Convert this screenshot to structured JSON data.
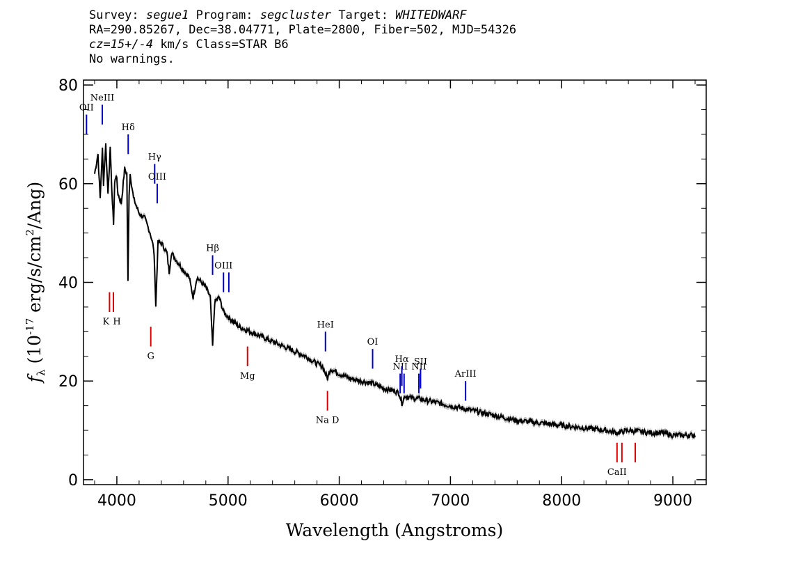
{
  "header": {
    "survey_label": "Survey:",
    "survey": "segue1",
    "program_label": "Program:",
    "program": "segcluster",
    "target_label": "Target:",
    "target": "WHITEDWARF",
    "line2": "RA=290.85267, Dec=38.04771, Plate=2800, Fiber=502, MJD=54326",
    "cz": "cz=15+/-4",
    "cz_rest": "km/s Class=STAR B6",
    "line4": "No warnings."
  },
  "chart_data": {
    "type": "line",
    "xlabel": "Wavelength (Angstroms)",
    "ylabel": "fλ (10⁻¹⁷ erg/s/cm²/Ang)",
    "xlim": [
      3700,
      9300
    ],
    "ylim": [
      -1,
      81
    ],
    "xticks": [
      "4000",
      "5000",
      "6000",
      "7000",
      "8000",
      "9000"
    ],
    "yticks": [
      "0",
      "20",
      "40",
      "60",
      "80"
    ],
    "grid": false,
    "colors": {
      "spectrum": "#000000",
      "error_band": "#bbbbbb",
      "emission": "#0000cc",
      "absorption": "#dd0000"
    },
    "series": [
      {
        "x": [
          3800,
          3830,
          3850,
          3870,
          3880,
          3900,
          3920,
          3940,
          3960,
          3970,
          3980,
          3995,
          4010,
          4040,
          4070,
          4090,
          4100,
          4110,
          4120,
          4150,
          4200,
          4250,
          4300,
          4330,
          4340,
          4350,
          4370,
          4400,
          4450,
          4471,
          4490,
          4550,
          4650,
          4686,
          4720,
          4800,
          4840,
          4861,
          4880,
          4920,
          4960,
          5000,
          5100,
          5200,
          5300,
          5400,
          5500,
          5600,
          5700,
          5800,
          5850,
          5876,
          5895,
          5920,
          6000,
          6100,
          6200,
          6300,
          6400,
          6500,
          6540,
          6563,
          6590,
          6650,
          6700,
          6800,
          6900,
          7000,
          7200,
          7400,
          7600,
          7800,
          8000,
          8200,
          8400,
          8500,
          8600,
          8800,
          8900,
          9000,
          9100,
          9200
        ],
        "y": [
          62,
          66,
          57,
          67,
          60,
          68,
          58,
          67,
          56,
          52,
          60,
          62,
          58,
          56,
          63,
          62,
          40,
          58,
          62,
          57,
          54,
          53,
          50,
          47,
          43,
          35,
          48,
          48,
          46,
          42,
          46,
          44,
          41,
          37,
          41,
          39,
          37,
          27,
          36,
          37,
          34,
          33,
          31,
          30,
          29,
          28,
          27,
          26,
          25,
          23.5,
          23,
          21.5,
          20.5,
          22.5,
          21.5,
          20.5,
          20,
          19.5,
          18.5,
          18,
          17.5,
          15.5,
          17,
          16.5,
          16.5,
          16,
          15.5,
          15,
          14,
          13,
          12,
          11.5,
          11,
          10.5,
          10,
          9.5,
          10,
          9.5,
          9.5,
          9,
          9,
          9
        ]
      }
    ],
    "emission_lines": [
      {
        "label": "OII",
        "x": 3727,
        "y": 74,
        "len": 4
      },
      {
        "label": "NeIII",
        "x": 3869,
        "y": 76,
        "len": 4
      },
      {
        "label": "Hδ",
        "x": 4102,
        "y": 70,
        "len": 4
      },
      {
        "label": "Hγ",
        "x": 4340,
        "y": 64,
        "len": 4
      },
      {
        "label": "OIII",
        "x": 4363,
        "y": 60,
        "len": 4
      },
      {
        "label": "Hβ",
        "x": 4861,
        "y": 45.5,
        "len": 4
      },
      {
        "label": "OIII",
        "x": 4959,
        "y": 42,
        "len": 4
      },
      {
        "label": "",
        "x": 5007,
        "y": 42,
        "len": 4
      },
      {
        "label": "HeI",
        "x": 5876,
        "y": 30,
        "len": 4
      },
      {
        "label": "OI",
        "x": 6300,
        "y": 26.5,
        "len": 4
      },
      {
        "label": "NII",
        "x": 6548,
        "y": 21.5,
        "len": 4
      },
      {
        "label": "Hα",
        "x": 6563,
        "y": 23,
        "len": 4
      },
      {
        "label": "",
        "x": 6583,
        "y": 21.5,
        "len": 4
      },
      {
        "label": "NII",
        "x": 6716,
        "y": 21.5,
        "len": 4
      },
      {
        "label": "SII",
        "x": 6731,
        "y": 22.5,
        "len": 4
      },
      {
        "label": "ArIII",
        "x": 7136,
        "y": 20,
        "len": 4
      }
    ],
    "absorption_lines": [
      {
        "label": "K",
        "x": 3934,
        "y": 38,
        "len": 4
      },
      {
        "label": "H",
        "x": 3969,
        "y": 38,
        "len": 4
      },
      {
        "label": "G",
        "x": 4305,
        "y": 31,
        "len": 4
      },
      {
        "label": "Mg",
        "x": 5175,
        "y": 27,
        "len": 4
      },
      {
        "label": "Na D",
        "x": 5894,
        "y": 18,
        "len": 4
      },
      {
        "label": "CaII",
        "x": 8498,
        "y": 7.5,
        "len": 4
      },
      {
        "label": "",
        "x": 8542,
        "y": 7.5,
        "len": 4
      },
      {
        "label": "",
        "x": 8662,
        "y": 7.5,
        "len": 4
      }
    ]
  }
}
